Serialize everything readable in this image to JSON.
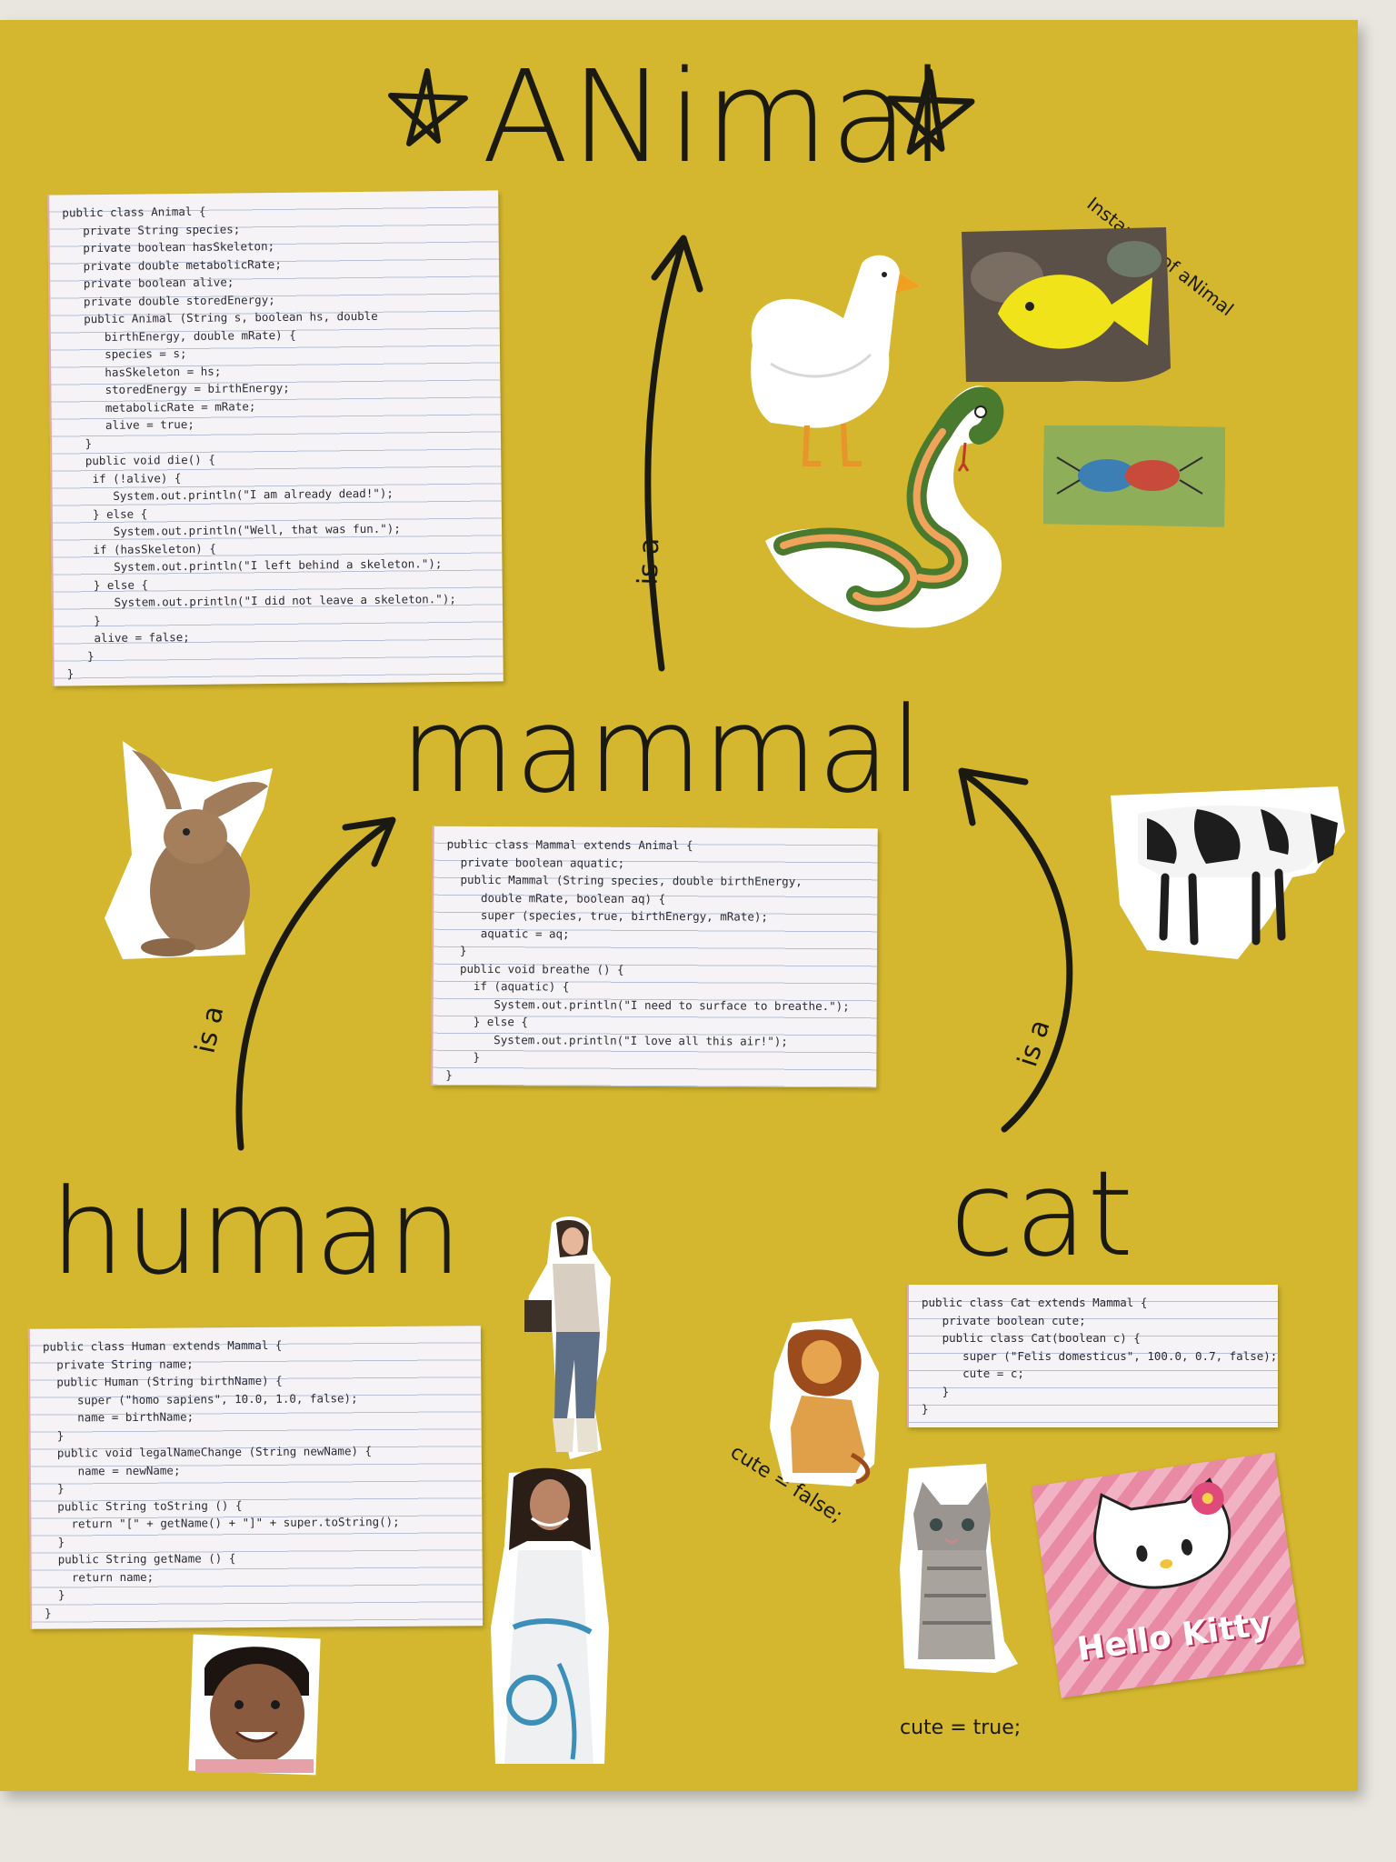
{
  "poster": {
    "title": "ANimal",
    "mammal": "mammal",
    "human": "human",
    "cat": "cat",
    "relation_label": "is a",
    "instances_caption": "Instances of aNimal",
    "cute_false": "cute = false;",
    "cute_true": "cute = true;"
  },
  "code": {
    "animal": "public class Animal {\n   private String species;\n   private boolean hasSkeleton;\n   private double metabolicRate;\n   private boolean alive;\n   private double storedEnergy;\n   public Animal (String s, boolean hs, double\n      birthEnergy, double mRate) {\n      species = s;\n      hasSkeleton = hs;\n      storedEnergy = birthEnergy;\n      metabolicRate = mRate;\n      alive = true;\n   }\n   public void die() {\n    if (!alive) {\n       System.out.println(\"I am already dead!\");\n    } else {\n       System.out.println(\"Well, that was fun.\");\n    if (hasSkeleton) {\n       System.out.println(\"I left behind a skeleton.\");\n    } else {\n       System.out.println(\"I did not leave a skeleton.\");\n    }\n    alive = false;\n   }\n}",
    "mammal": "public class Mammal extends Animal {\n  private boolean aquatic;\n  public Mammal (String species, double birthEnergy,\n     double mRate, boolean aq) {\n     super (species, true, birthEnergy, mRate);\n     aquatic = aq;\n  }\n  public void breathe () {\n    if (aquatic) {\n       System.out.println(\"I need to surface to breathe.\");\n    } else {\n       System.out.println(\"I love all this air!\");\n    }\n}",
    "human": "public class Human extends Mammal {\n  private String name;\n  public Human (String birthName) {\n     super (\"homo sapiens\", 10.0, 1.0, false);\n     name = birthName;\n  }\n  public void legalNameChange (String newName) {\n     name = newName;\n  }\n  public String toString () {\n    return \"[\" + getName() + \"]\" + super.toString();\n  }\n  public String getName () {\n    return name;\n  }\n}",
    "cat": "public class Cat extends Mammal {\n   private boolean cute;\n   public class Cat(boolean c) {\n      super (\"Felis domesticus\", 100.0, 0.7, false);\n      cute = c;\n   }\n}"
  },
  "cutouts": {
    "duck": "duck",
    "fish": "yellow tang fish",
    "snake": "cartoon snake",
    "beetles": "beetles",
    "rabbit": "rabbit",
    "cow": "cow",
    "woman_phone": "woman on phone",
    "woman_dress": "woman in dress",
    "baby": "baby",
    "lion": "cartoon lion",
    "kitten": "kitten",
    "hello_kitty": "Hello Kitty"
  },
  "hello_kitty_text": "Hello Kitty",
  "colors": {
    "poster": "#d4b72e",
    "ink": "#1a1a12",
    "paper": "#f6f3f6"
  }
}
